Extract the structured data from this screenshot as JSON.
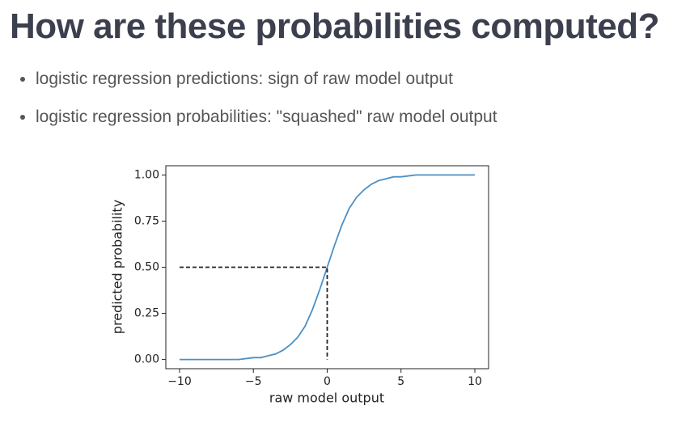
{
  "header": {
    "title": "How are these probabilities computed?"
  },
  "bullets": [
    "logistic regression predictions: sign of raw model output",
    "logistic regression probabilities: \"squashed\" raw model output"
  ],
  "chart_data": {
    "type": "line",
    "xlabel": "raw model output",
    "ylabel": "predicted probability",
    "xlim": [
      -10.93,
      10.93
    ],
    "ylim": [
      -0.05,
      1.05
    ],
    "xticks": [
      {
        "value": -10,
        "label": "−10"
      },
      {
        "value": -5,
        "label": "−5"
      },
      0,
      5,
      10
    ],
    "yticks": [
      {
        "value": 0,
        "label": "0.00"
      },
      {
        "value": 0.25,
        "label": "0.25"
      },
      {
        "value": 0.5,
        "label": "0.50"
      },
      {
        "value": 0.75,
        "label": "0.75"
      },
      {
        "value": 1,
        "label": "1.00"
      }
    ],
    "series": [
      {
        "color": "#4c8fc4",
        "dashed": false,
        "x": [
          -10,
          -9,
          -8,
          -7,
          -6,
          -5,
          -4.5,
          -4,
          -3.5,
          -3,
          -2.5,
          -2,
          -1.5,
          -1,
          -0.5,
          0,
          0.5,
          1,
          1.5,
          2,
          2.5,
          3,
          3.5,
          4,
          4.5,
          5,
          6,
          7,
          8,
          9,
          10
        ],
        "values": [
          0.0,
          0.0,
          0.0,
          0.0,
          0.0,
          0.01,
          0.01,
          0.02,
          0.03,
          0.05,
          0.08,
          0.12,
          0.18,
          0.27,
          0.38,
          0.5,
          0.62,
          0.73,
          0.82,
          0.88,
          0.92,
          0.95,
          0.97,
          0.98,
          0.99,
          0.99,
          1.0,
          1.0,
          1.0,
          1.0,
          1.0
        ]
      },
      {
        "color": "#222222",
        "dashed": true,
        "x": [
          -10,
          0,
          0
        ],
        "values": [
          0.5,
          0.5,
          0
        ]
      }
    ]
  }
}
